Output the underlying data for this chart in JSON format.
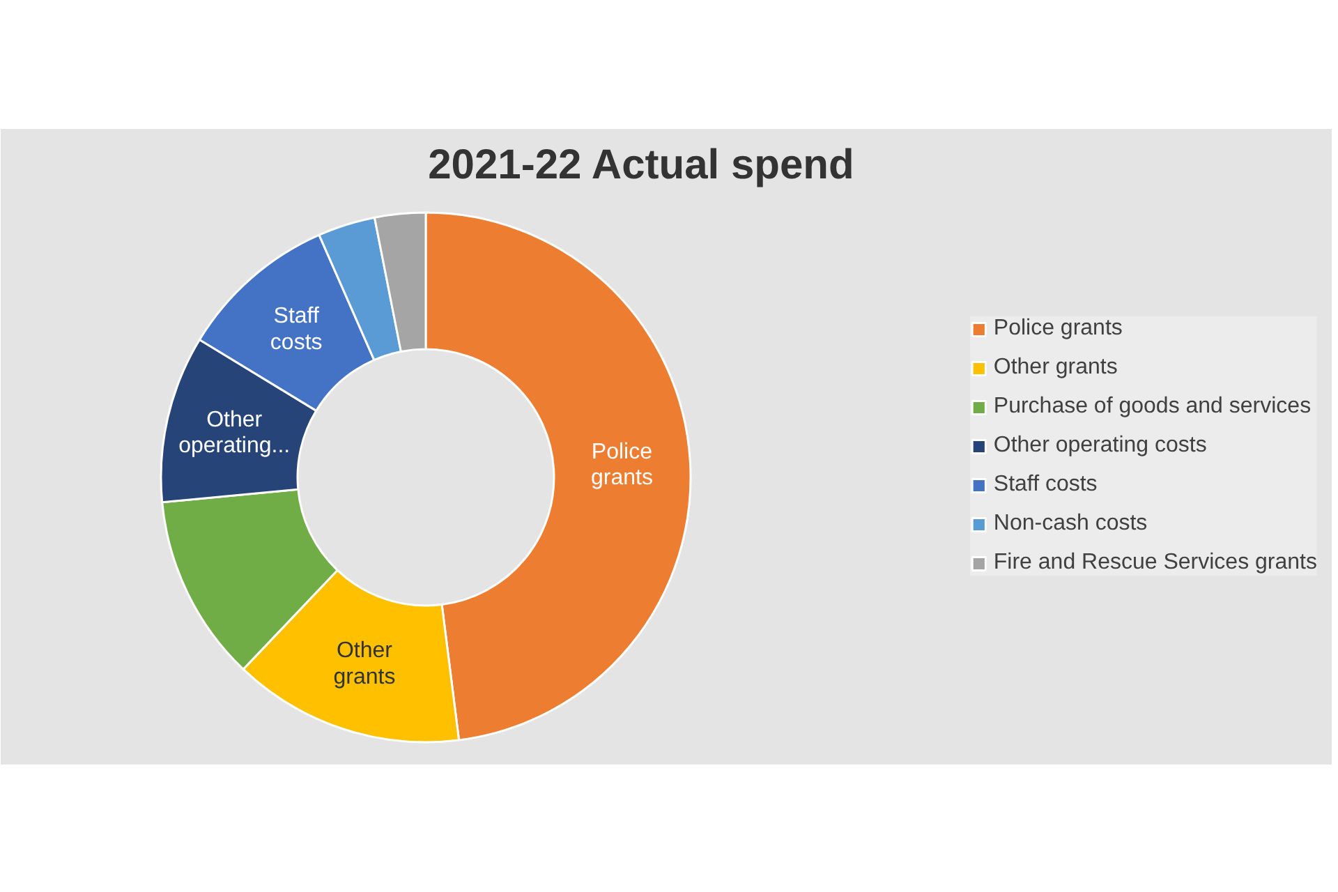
{
  "chart_data": {
    "type": "donut",
    "title": "2021-22 Actual spend",
    "categories": [
      "Police grants",
      "Other grants",
      "Purchase of goods and services",
      "Other operating costs",
      "Staff costs",
      "Non-cash costs",
      "Fire and Rescue Services grants"
    ],
    "values": [
      48.0,
      14.1,
      11.4,
      10.2,
      9.7,
      3.5,
      3.1
    ],
    "colors": [
      "#ed7d31",
      "#ffc000",
      "#70ad47",
      "#264478",
      "#4472c4",
      "#5b9bd5",
      "#a5a5a5"
    ],
    "legend": "right",
    "annotations": [
      {
        "text": "Police grants",
        "x": "Police grants"
      },
      {
        "text": "Other grants",
        "x": "Other grants"
      },
      {
        "text": "Other operating...",
        "x": "Other operating costs"
      },
      {
        "text": "Staff costs",
        "x": "Staff costs"
      }
    ]
  }
}
